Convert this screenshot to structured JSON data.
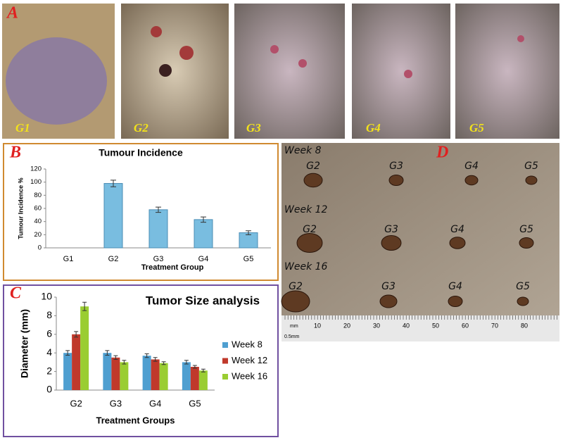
{
  "panel_labels": [
    "A",
    "B",
    "C",
    "D"
  ],
  "photos_a": [
    "G1",
    "G2",
    "G3",
    "G4",
    "G5"
  ],
  "photo_d": {
    "rows": [
      {
        "week": "Week 8",
        "groups": [
          "G2",
          "G3",
          "G4",
          "G5"
        ]
      },
      {
        "week": "Week 12",
        "groups": [
          "G2",
          "G3",
          "G4",
          "G5"
        ]
      },
      {
        "week": "Week 16",
        "groups": [
          "G2",
          "G3",
          "G4",
          "G5"
        ]
      }
    ],
    "ruler": {
      "unit": "mm",
      "ticks": [
        10,
        20,
        30,
        40,
        50,
        60,
        70,
        80
      ],
      "scale": "0.5mm"
    }
  },
  "chart_data": [
    {
      "type": "bar",
      "title": "Tumour Incidence",
      "ylabel": "Tumour Incidence %",
      "xlabel": "Treatment Group",
      "categories": [
        "G1",
        "G2",
        "G3",
        "G4",
        "G5"
      ],
      "values": [
        0,
        98,
        58,
        43,
        23
      ],
      "errors": [
        null,
        5,
        4,
        4,
        3
      ],
      "color": "#79bde0",
      "ylim": [
        0,
        120
      ],
      "yticks": [
        0,
        20,
        40,
        60,
        80,
        100,
        120
      ],
      "grid": false
    },
    {
      "type": "grouped-bar",
      "title": "Tumor Size analysis",
      "ylabel": "Diameter (mm)",
      "xlabel": "Treatment Groups",
      "categories": [
        "G2",
        "G3",
        "G4",
        "G5"
      ],
      "series": [
        {
          "name": "Week 8",
          "color": "#4f9fd0",
          "values": [
            4,
            4,
            3.7,
            3
          ],
          "errors": [
            0.25,
            0.25,
            0.2,
            0.2
          ]
        },
        {
          "name": "Week 12",
          "color": "#c0392b",
          "values": [
            6,
            3.5,
            3.3,
            2.5
          ],
          "errors": [
            0.3,
            0.2,
            0.2,
            0.15
          ]
        },
        {
          "name": "Week 16",
          "color": "#9acd32",
          "values": [
            9,
            3,
            2.9,
            2.1
          ],
          "errors": [
            0.45,
            0.2,
            0.15,
            0.15
          ]
        }
      ],
      "ylim": [
        0,
        10
      ],
      "yticks": [
        0,
        2,
        4,
        6,
        8,
        10
      ],
      "legend": "right",
      "grid": false
    }
  ]
}
